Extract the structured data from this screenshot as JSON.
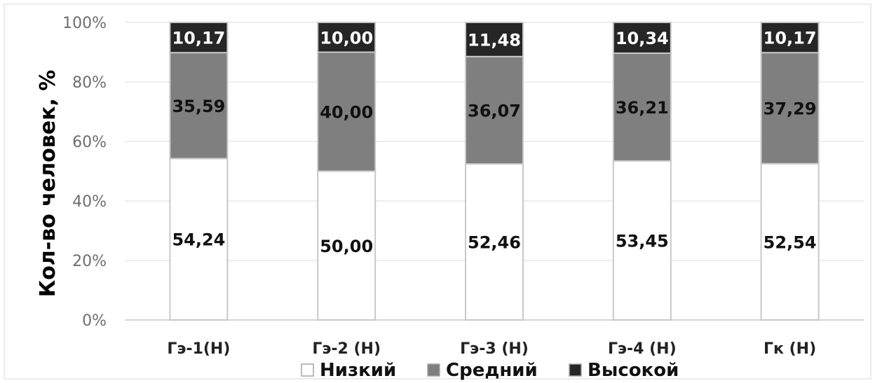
{
  "chart_data": {
    "type": "bar",
    "stacked": true,
    "percent_stacked": true,
    "ylabel": "Кол-во человек, %",
    "xlabel": "",
    "ylim": [
      0,
      100
    ],
    "yticks": [
      "0%",
      "20%",
      "40%",
      "60%",
      "80%",
      "100%"
    ],
    "grid": true,
    "legend_position": "bottom",
    "categories": [
      "Гэ-1(Н)",
      "Гэ-2 (Н)",
      "Гэ-3 (Н)",
      "Гэ-4 (Н)",
      "Гк (Н)"
    ],
    "series": [
      {
        "name": "Низкий",
        "color": "#ffffff",
        "values": [
          54.24,
          50.0,
          52.46,
          53.45,
          52.54
        ],
        "labels": [
          "54,24",
          "50,00",
          "52,46",
          "53,45",
          "52,54"
        ]
      },
      {
        "name": "Средний",
        "color": "#7f7f7f",
        "values": [
          35.59,
          40.0,
          36.07,
          36.21,
          37.29
        ],
        "labels": [
          "35,59",
          "40,00",
          "36,07",
          "36,21",
          "37,29"
        ]
      },
      {
        "name": "Высокой",
        "color": "#262626",
        "values": [
          10.17,
          10.0,
          11.48,
          10.34,
          10.17
        ],
        "labels": [
          "10,17",
          "10,00",
          "11,48",
          "10,34",
          "10,17"
        ]
      }
    ]
  }
}
